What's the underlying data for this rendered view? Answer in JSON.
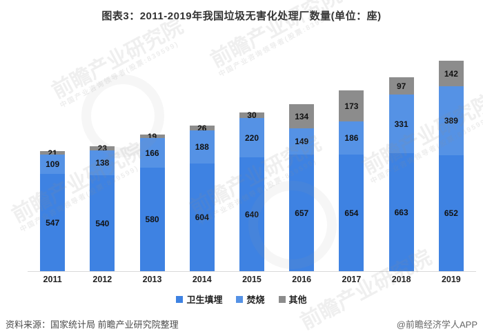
{
  "title": "图表3：2011-2019年我国垃圾无害化处理厂数量(单位：座)",
  "chart_data": {
    "type": "bar",
    "stacked": true,
    "title": "图表3：2011-2019年我国垃圾无害化处理厂数量(单位：座)",
    "categories": [
      "2011",
      "2012",
      "2013",
      "2014",
      "2015",
      "2016",
      "2017",
      "2018",
      "2019"
    ],
    "series": [
      {
        "name": "卫生填埋",
        "color": "#3E82E2",
        "values": [
          547,
          540,
          580,
          604,
          640,
          657,
          654,
          663,
          652
        ]
      },
      {
        "name": "焚烧",
        "color": "#5592E5",
        "values": [
          109,
          138,
          166,
          188,
          220,
          149,
          186,
          331,
          389
        ]
      },
      {
        "name": "其他",
        "color": "#8C8C8C",
        "values": [
          21,
          23,
          19,
          26,
          30,
          134,
          173,
          97,
          142
        ]
      }
    ],
    "xlabel": "",
    "ylabel": "",
    "ylim": [
      0,
      1183
    ],
    "grid": false,
    "legend_position": "bottom",
    "value_labels": true,
    "axis_line_color": "#d9d9d9"
  },
  "footer": {
    "source": "资料来源：国家统计局 前瞻产业研究院整理",
    "credit": "@前瞻经济学人APP"
  },
  "watermark": {
    "text": "前瞻产业研究院",
    "subtext": "中国产业咨询领导者(股票:839599)"
  }
}
